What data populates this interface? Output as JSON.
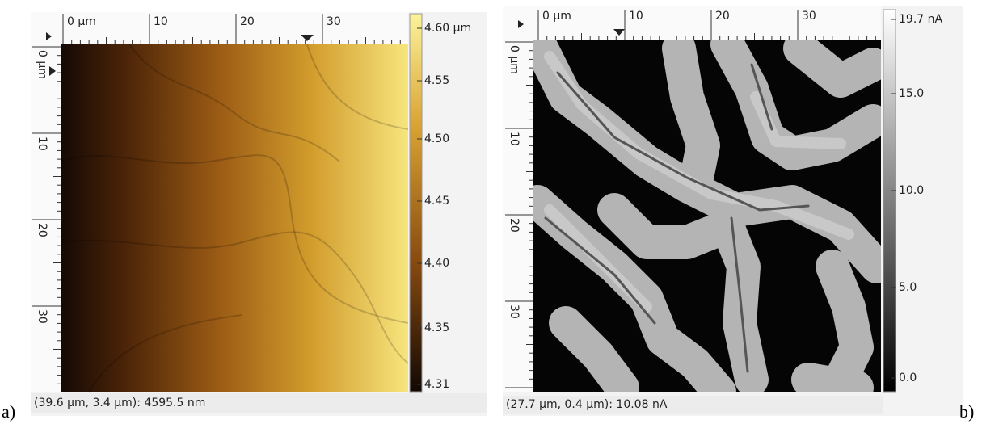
{
  "panels": [
    {
      "label": "a)",
      "x_ruler": [
        "0 µm",
        "10",
        "20",
        "30"
      ],
      "y_ruler": [
        "0 µm",
        "10",
        "20",
        "30"
      ],
      "colorbar": [
        "4.60 µm",
        "4.55",
        "4.50",
        "4.45",
        "4.40",
        "4.35",
        "4.31"
      ],
      "status": "(39.6 µm, 3.4 µm): 4595.5 nm"
    },
    {
      "label": "b)",
      "x_ruler": [
        "0 µm",
        "10",
        "20",
        "30"
      ],
      "y_ruler": [
        "0 µm",
        "10",
        "20",
        "30"
      ],
      "colorbar": [
        "19.7 nA",
        "15.0",
        "10.0",
        "5.0",
        "0.0"
      ],
      "status": "(27.7 µm, 0.4 µm): 10.08 nA"
    }
  ]
}
